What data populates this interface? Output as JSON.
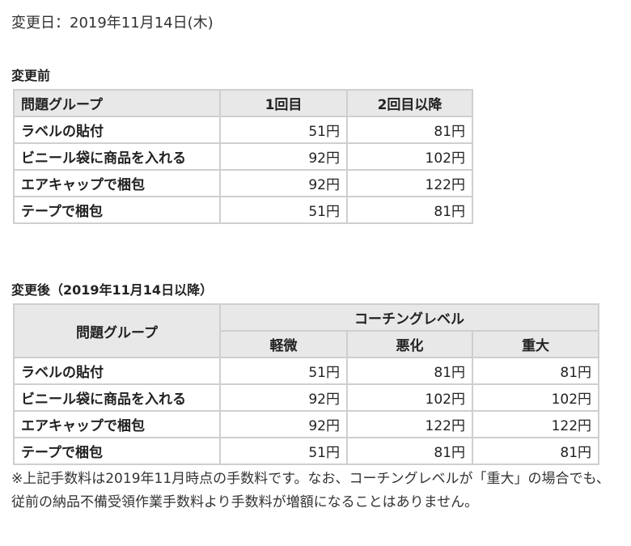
{
  "change_date": "変更日：2019年11月14日(木)",
  "before": {
    "title": "変更前",
    "headers": [
      "問題グループ",
      "1回目",
      "2回目以降"
    ],
    "rows": [
      {
        "group": "ラベルの貼付",
        "first": "51円",
        "later": "81円"
      },
      {
        "group": "ビニール袋に商品を入れる",
        "first": "92円",
        "later": "102円"
      },
      {
        "group": "エアキャップで梱包",
        "first": "92円",
        "later": "122円"
      },
      {
        "group": "テープで梱包",
        "first": "51円",
        "later": "81円"
      }
    ]
  },
  "after": {
    "title": "変更後（2019年11月14日以降）",
    "group_header": "問題グループ",
    "coaching_header": "コーチングレベル",
    "level_headers": [
      "軽微",
      "悪化",
      "重大"
    ],
    "rows": [
      {
        "group": "ラベルの貼付",
        "minor": "51円",
        "worse": "81円",
        "severe": "81円"
      },
      {
        "group": "ビニール袋に商品を入れる",
        "minor": "92円",
        "worse": "102円",
        "severe": "102円"
      },
      {
        "group": "エアキャップで梱包",
        "minor": "92円",
        "worse": "122円",
        "severe": "122円"
      },
      {
        "group": "テープで梱包",
        "minor": "51円",
        "worse": "81円",
        "severe": "81円"
      }
    ]
  },
  "footnote": "※上記手数料は2019年11月時点の手数料です。なお、コーチングレベルが「重大」の場合でも、従前の納品不備受領作業手数料より手数料が増額になることはありません。"
}
